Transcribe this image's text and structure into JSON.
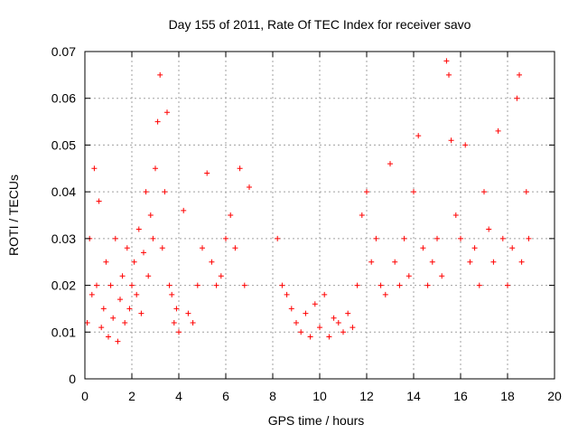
{
  "chart_data": {
    "type": "scatter",
    "title": "Day 155 of 2011, Rate Of TEC Index for receiver savo",
    "xlabel": "GPS time / hours",
    "ylabel": "ROTI / TECUs",
    "xlim": [
      0,
      20
    ],
    "ylim": [
      0,
      0.07
    ],
    "x_ticks": [
      "0",
      "2",
      "4",
      "6",
      "8",
      "10",
      "12",
      "14",
      "16",
      "18",
      "20"
    ],
    "y_ticks": [
      "0",
      "0.01",
      "0.02",
      "0.03",
      "0.04",
      "0.05",
      "0.06",
      "0.07"
    ],
    "grid": true,
    "marker": "plus",
    "colors": {
      "points": "#ff0000",
      "grid": "#a0a0a0",
      "frame": "#000000"
    },
    "points": [
      [
        0.1,
        0.012
      ],
      [
        0.2,
        0.03
      ],
      [
        0.3,
        0.018
      ],
      [
        0.4,
        0.045
      ],
      [
        0.5,
        0.02
      ],
      [
        0.6,
        0.038
      ],
      [
        0.7,
        0.011
      ],
      [
        0.8,
        0.015
      ],
      [
        0.9,
        0.025
      ],
      [
        1.0,
        0.009
      ],
      [
        1.1,
        0.02
      ],
      [
        1.2,
        0.013
      ],
      [
        1.3,
        0.03
      ],
      [
        1.4,
        0.008
      ],
      [
        1.5,
        0.017
      ],
      [
        1.6,
        0.022
      ],
      [
        1.7,
        0.012
      ],
      [
        1.8,
        0.028
      ],
      [
        1.9,
        0.015
      ],
      [
        2.0,
        0.02
      ],
      [
        2.1,
        0.025
      ],
      [
        2.2,
        0.018
      ],
      [
        2.3,
        0.032
      ],
      [
        2.4,
        0.014
      ],
      [
        2.5,
        0.027
      ],
      [
        2.6,
        0.04
      ],
      [
        2.7,
        0.022
      ],
      [
        2.8,
        0.035
      ],
      [
        2.9,
        0.03
      ],
      [
        3.0,
        0.045
      ],
      [
        3.1,
        0.055
      ],
      [
        3.2,
        0.065
      ],
      [
        3.3,
        0.028
      ],
      [
        3.4,
        0.04
      ],
      [
        3.5,
        0.057
      ],
      [
        3.6,
        0.02
      ],
      [
        3.7,
        0.018
      ],
      [
        3.8,
        0.012
      ],
      [
        3.9,
        0.015
      ],
      [
        4.0,
        0.01
      ],
      [
        4.2,
        0.036
      ],
      [
        4.4,
        0.014
      ],
      [
        4.6,
        0.012
      ],
      [
        4.8,
        0.02
      ],
      [
        5.0,
        0.028
      ],
      [
        5.2,
        0.044
      ],
      [
        5.4,
        0.025
      ],
      [
        5.6,
        0.02
      ],
      [
        5.8,
        0.022
      ],
      [
        6.0,
        0.03
      ],
      [
        6.2,
        0.035
      ],
      [
        6.4,
        0.028
      ],
      [
        6.6,
        0.045
      ],
      [
        6.8,
        0.02
      ],
      [
        7.0,
        0.041
      ],
      [
        8.2,
        0.03
      ],
      [
        8.4,
        0.02
      ],
      [
        8.6,
        0.018
      ],
      [
        8.8,
        0.015
      ],
      [
        9.0,
        0.012
      ],
      [
        9.2,
        0.01
      ],
      [
        9.4,
        0.014
      ],
      [
        9.6,
        0.009
      ],
      [
        9.8,
        0.016
      ],
      [
        10.0,
        0.011
      ],
      [
        10.2,
        0.018
      ],
      [
        10.4,
        0.009
      ],
      [
        10.6,
        0.013
      ],
      [
        10.8,
        0.012
      ],
      [
        11.0,
        0.01
      ],
      [
        11.2,
        0.014
      ],
      [
        11.4,
        0.011
      ],
      [
        11.6,
        0.02
      ],
      [
        11.8,
        0.035
      ],
      [
        12.0,
        0.04
      ],
      [
        12.2,
        0.025
      ],
      [
        12.4,
        0.03
      ],
      [
        12.6,
        0.02
      ],
      [
        12.8,
        0.018
      ],
      [
        13.0,
        0.046
      ],
      [
        13.2,
        0.025
      ],
      [
        13.4,
        0.02
      ],
      [
        13.6,
        0.03
      ],
      [
        13.8,
        0.022
      ],
      [
        14.0,
        0.04
      ],
      [
        14.2,
        0.052
      ],
      [
        14.4,
        0.028
      ],
      [
        14.6,
        0.02
      ],
      [
        14.8,
        0.025
      ],
      [
        15.0,
        0.03
      ],
      [
        15.2,
        0.022
      ],
      [
        15.4,
        0.068
      ],
      [
        15.5,
        0.065
      ],
      [
        15.6,
        0.051
      ],
      [
        15.8,
        0.035
      ],
      [
        16.0,
        0.03
      ],
      [
        16.2,
        0.05
      ],
      [
        16.4,
        0.025
      ],
      [
        16.6,
        0.028
      ],
      [
        16.8,
        0.02
      ],
      [
        17.0,
        0.04
      ],
      [
        17.2,
        0.032
      ],
      [
        17.4,
        0.025
      ],
      [
        17.6,
        0.053
      ],
      [
        17.8,
        0.03
      ],
      [
        18.0,
        0.02
      ],
      [
        18.2,
        0.028
      ],
      [
        18.4,
        0.06
      ],
      [
        18.5,
        0.065
      ],
      [
        18.6,
        0.025
      ],
      [
        18.8,
        0.04
      ],
      [
        18.9,
        0.03
      ]
    ]
  }
}
